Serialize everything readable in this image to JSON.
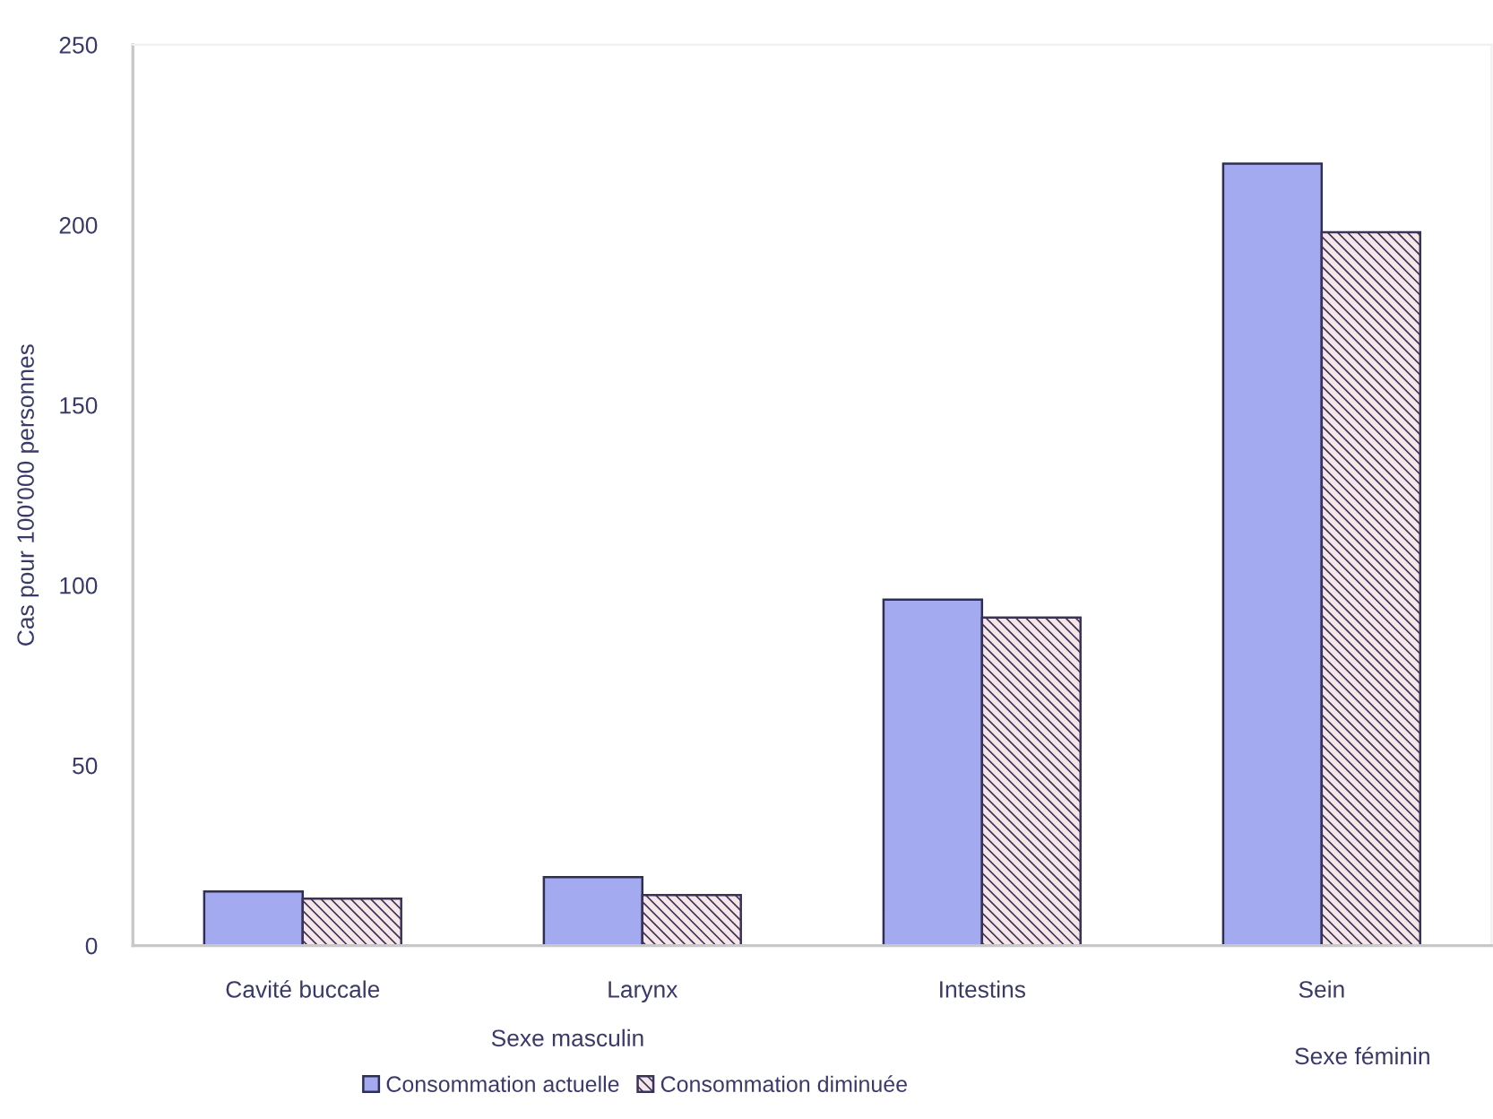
{
  "chart_data": {
    "type": "bar",
    "ylabel": "Cas pour 100'000 personnes",
    "categories": [
      "Cavité buccale",
      "Larynx",
      "Intestins",
      "Sein"
    ],
    "series": [
      {
        "name": "Consommation actuelle",
        "color": "#a3aaf0",
        "values": [
          15,
          19,
          96,
          217
        ]
      },
      {
        "name": "Consommation diminuée",
        "color": "#3a3358",
        "values": [
          13,
          14,
          91,
          198
        ]
      }
    ],
    "ylim": [
      0,
      250
    ],
    "yticks": [
      0,
      50,
      100,
      150,
      200,
      250
    ],
    "annotations": [
      "Sexe masculin",
      "Sexe féminin"
    ],
    "legend": "bottom",
    "grid": false
  }
}
